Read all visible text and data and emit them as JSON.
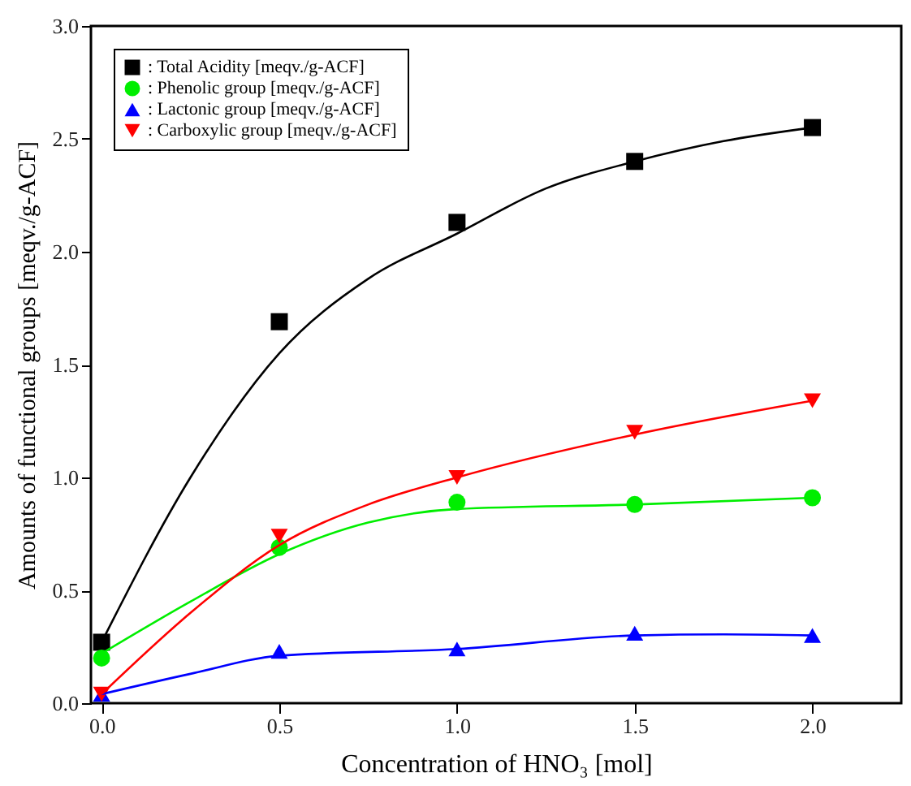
{
  "chart_data": {
    "type": "scatter",
    "xlabel": "Concentration of HNO₃ [mol]",
    "ylabel": "Amounts of functional groups [meqv./g-ACF]",
    "xlim": [
      -0.03,
      2.25
    ],
    "ylim": [
      0,
      3.0
    ],
    "xticks": [
      {
        "value": 0,
        "label": "0.0"
      },
      {
        "value": 0.5,
        "label": "0.5"
      },
      {
        "value": 1,
        "label": "1.0"
      },
      {
        "value": 1.5,
        "label": "1.5"
      },
      {
        "value": 2,
        "label": "2.0"
      }
    ],
    "yticks": [
      {
        "value": 0,
        "label": "0.0"
      },
      {
        "value": 0.5,
        "label": "0.5"
      },
      {
        "value": 1,
        "label": "1.0"
      },
      {
        "value": 1.5,
        "label": "1.5"
      },
      {
        "value": 2,
        "label": "2.0"
      },
      {
        "value": 2.5,
        "label": "2.5"
      },
      {
        "value": 3,
        "label": "3.0"
      }
    ],
    "legend": "top left",
    "grid": false,
    "series": [
      {
        "name": ": Total Acidity [meqv./g-ACF]",
        "color": "#000000",
        "marker": "square",
        "x": [
          0,
          0.5,
          1,
          1.5,
          2
        ],
        "values": [
          0.27,
          1.69,
          2.13,
          2.4,
          2.55
        ]
      },
      {
        "name": ": Phenolic group [meqv./g-ACF]",
        "color": "#00ee00",
        "marker": "circle",
        "x": [
          0,
          0.5,
          1,
          1.5,
          2
        ],
        "values": [
          0.2,
          0.69,
          0.89,
          0.88,
          0.91
        ]
      },
      {
        "name": ": Lactonic group [meqv./g-ACF]",
        "color": "#0000ff",
        "marker": "triangle",
        "x": [
          0,
          0.5,
          1,
          1.5,
          2
        ],
        "values": [
          0.04,
          0.23,
          0.24,
          0.31,
          0.3
        ]
      },
      {
        "name": ": Carboxylic group [meqv./g-ACF]",
        "color": "#ff0000",
        "marker": "triangle-down",
        "x": [
          0,
          0.5,
          1,
          1.5,
          2
        ],
        "values": [
          0.04,
          0.74,
          1.0,
          1.2,
          1.34
        ]
      },
      {
        "type": "line",
        "color": "#000000",
        "x": [
          0,
          0.25,
          0.5,
          0.75,
          1,
          1.25,
          1.5,
          1.75,
          2
        ],
        "values": [
          0.27,
          1.0,
          1.55,
          1.88,
          2.08,
          2.28,
          2.4,
          2.49,
          2.55
        ]
      },
      {
        "type": "line",
        "color": "#00ee00",
        "x": [
          0,
          0.25,
          0.5,
          0.75,
          1,
          1.5,
          2
        ],
        "values": [
          0.22,
          0.45,
          0.66,
          0.8,
          0.86,
          0.88,
          0.91
        ]
      },
      {
        "type": "line",
        "color": "#0000ff",
        "x": [
          0,
          0.25,
          0.5,
          1,
          1.5,
          1.75,
          2
        ],
        "values": [
          0.04,
          0.13,
          0.21,
          0.24,
          0.3,
          0.305,
          0.3
        ]
      },
      {
        "type": "line",
        "color": "#ff0000",
        "x": [
          0,
          0.25,
          0.5,
          0.75,
          1,
          1.5,
          2
        ],
        "values": [
          0.04,
          0.4,
          0.7,
          0.88,
          1.0,
          1.19,
          1.34
        ]
      }
    ]
  }
}
